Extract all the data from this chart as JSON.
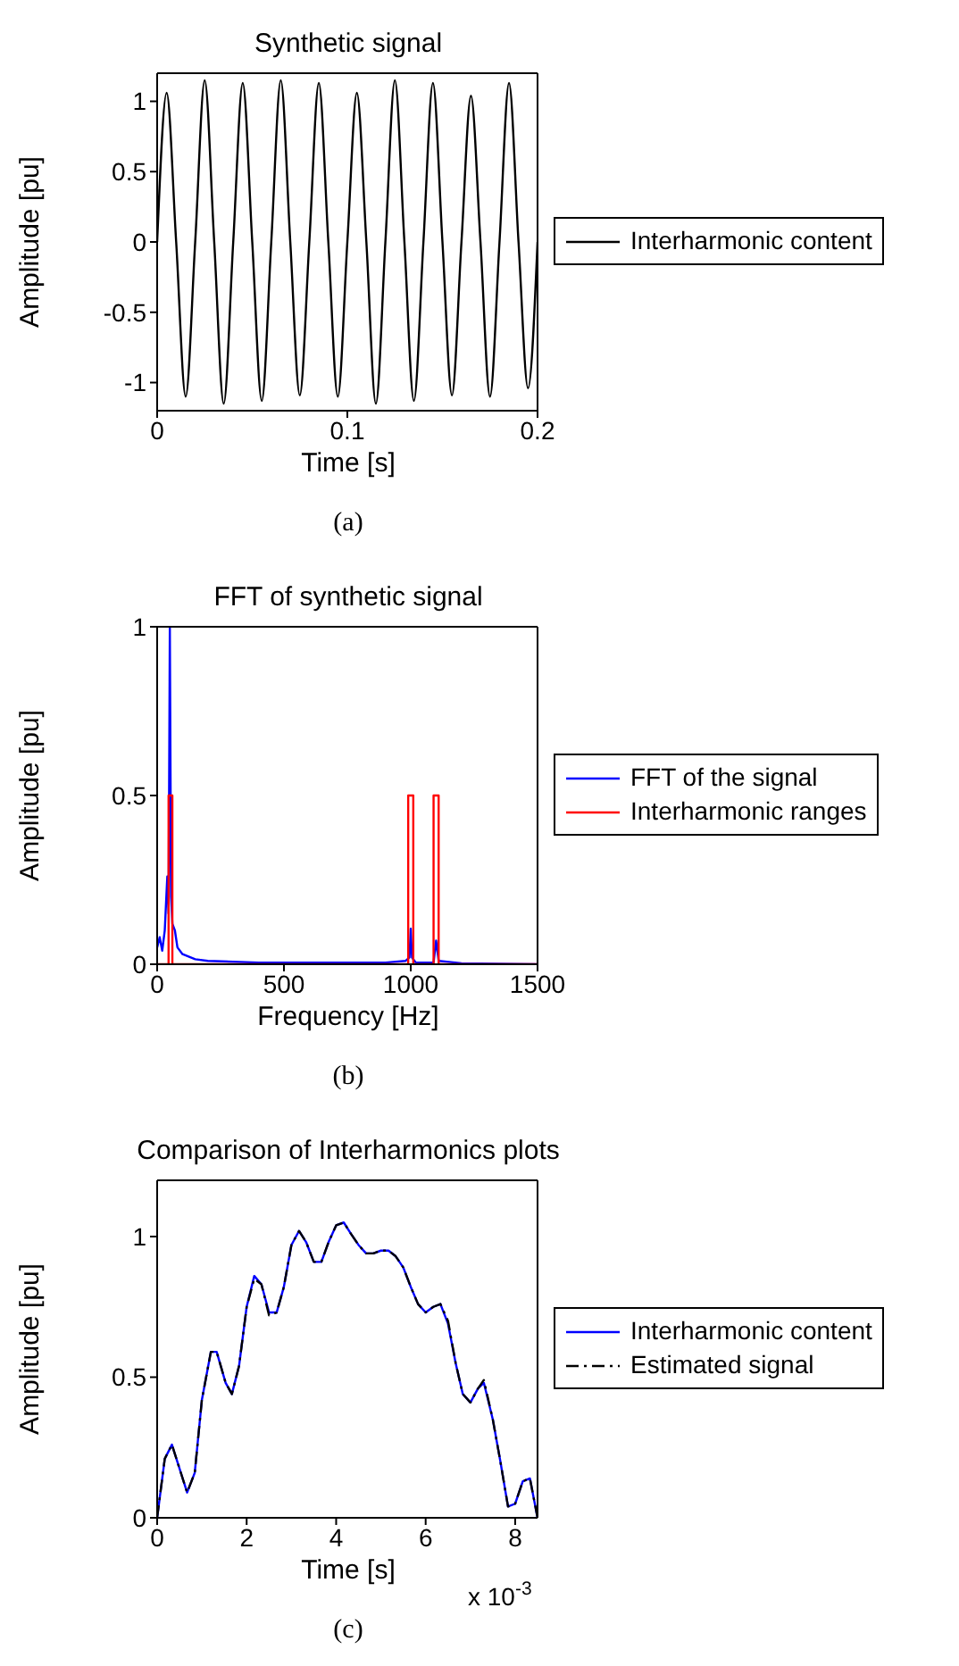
{
  "chart_data": [
    {
      "type": "line",
      "title": "Synthetic signal",
      "xlabel": "Time [s]",
      "ylabel": "Amplitude [pu]",
      "xlim": [
        0,
        0.2
      ],
      "xticks": [
        0,
        0.1,
        0.2
      ],
      "ylim": [
        -1.2,
        1.2
      ],
      "yticks": [
        -1,
        -0.5,
        0,
        0.5,
        1
      ],
      "legend": "right",
      "annotations": [
        "(a)"
      ],
      "series": [
        {
          "name": "Interharmonic content",
          "color": "#000000",
          "x": [
            0,
            0.005,
            0.01,
            0.015,
            0.02,
            0.025,
            0.03,
            0.035,
            0.04,
            0.045,
            0.05,
            0.055,
            0.06,
            0.065,
            0.07,
            0.075,
            0.08,
            0.085,
            0.09,
            0.095,
            0.1,
            0.105,
            0.11,
            0.115,
            0.12,
            0.125,
            0.13,
            0.135,
            0.14,
            0.145,
            0.15,
            0.155,
            0.16,
            0.165,
            0.17,
            0.175,
            0.18,
            0.185,
            0.19,
            0.195,
            0.2
          ],
          "values": [
            0,
            1.06,
            0,
            -1.1,
            0,
            1.15,
            0,
            -1.15,
            0,
            1.13,
            0,
            -1.13,
            0,
            1.15,
            0,
            -1.09,
            0,
            1.13,
            0,
            -1.1,
            0,
            1.06,
            0,
            -1.15,
            0,
            1.15,
            0,
            -1.13,
            0,
            1.13,
            0,
            -1.09,
            0,
            1.04,
            0,
            -1.1,
            0,
            1.13,
            0,
            -1.04,
            0
          ]
        }
      ]
    },
    {
      "type": "line",
      "title": "FFT of synthetic signal",
      "xlabel": "Frequency [Hz]",
      "ylabel": "Amplitude [pu]",
      "xlim": [
        0,
        1500
      ],
      "xticks": [
        0,
        500,
        1000,
        1500
      ],
      "ylim": [
        0,
        1
      ],
      "yticks": [
        0,
        0.5,
        1
      ],
      "legend": "right",
      "annotations": [
        "(b)"
      ],
      "series": [
        {
          "name": "FFT of the signal",
          "color": "#0000ff",
          "x": [
            0,
            10,
            20,
            30,
            40,
            45,
            50,
            55,
            60,
            70,
            80,
            100,
            150,
            200,
            400,
            900,
            980,
            995,
            1000,
            1005,
            1020,
            1090,
            1100,
            1110,
            1200,
            1500
          ],
          "values": [
            0.05,
            0.08,
            0.04,
            0.1,
            0.26,
            0.15,
            1,
            0.2,
            0.12,
            0.1,
            0.05,
            0.03,
            0.015,
            0.01,
            0.005,
            0.005,
            0.01,
            0.02,
            0.105,
            0.02,
            0.005,
            0.005,
            0.07,
            0.01,
            0.003,
            0
          ]
        },
        {
          "name": "Interharmonic ranges",
          "color": "#ff0000",
          "x": [
            0,
            45,
            45,
            60,
            60,
            990,
            990,
            1010,
            1010,
            1090,
            1090,
            1110,
            1110,
            1500
          ],
          "values": [
            0,
            0,
            0.5,
            0.5,
            0,
            0,
            0.5,
            0.5,
            0,
            0,
            0.5,
            0.5,
            0,
            0
          ]
        }
      ]
    },
    {
      "type": "line",
      "title": "Comparison of Interharmonics plots",
      "xlabel": "Time [s]",
      "ylabel": "Amplitude [pu]",
      "xlim": [
        0,
        8.5
      ],
      "xticks": [
        0,
        2,
        4,
        6,
        8
      ],
      "ylim": [
        0,
        1.2
      ],
      "yticks": [
        0,
        0.5,
        1
      ],
      "legend": "right",
      "annotations": [
        "x 10$^{-3}$",
        "(c)"
      ],
      "series": [
        {
          "name": "Interharmonic content",
          "color": "#0000ff",
          "line_style": "solid",
          "x": [
            0,
            0.17,
            0.33,
            0.67,
            0.84,
            1,
            1.2,
            1.33,
            1.53,
            1.67,
            1.83,
            2,
            2.17,
            2.33,
            2.5,
            2.67,
            2.83,
            3,
            3.17,
            3.33,
            3.5,
            3.67,
            3.83,
            4,
            4.17,
            4.33,
            4.5,
            4.67,
            4.83,
            5,
            5.17,
            5.33,
            5.5,
            5.67,
            5.83,
            6,
            6.17,
            6.33,
            6.5,
            6.67,
            6.83,
            7,
            7.17,
            7.3,
            7.5,
            7.67,
            7.84,
            8,
            8.17,
            8.33,
            8.5
          ],
          "values": [
            0,
            0.21,
            0.26,
            0.09,
            0.16,
            0.42,
            0.59,
            0.59,
            0.48,
            0.44,
            0.54,
            0.75,
            0.86,
            0.83,
            0.73,
            0.73,
            0.82,
            0.97,
            1.02,
            0.98,
            0.91,
            0.91,
            0.98,
            1.04,
            1.05,
            1.01,
            0.97,
            0.94,
            0.94,
            0.95,
            0.95,
            0.93,
            0.89,
            0.82,
            0.76,
            0.73,
            0.75,
            0.76,
            0.69,
            0.55,
            0.44,
            0.41,
            0.46,
            0.48,
            0.35,
            0.2,
            0.04,
            0.05,
            0.13,
            0.14,
            0
          ]
        },
        {
          "name": "Estimated signal",
          "color": "#000000",
          "line_style": "dashed",
          "x": [
            0,
            0.17,
            0.33,
            0.67,
            0.84,
            1,
            1.2,
            1.33,
            1.53,
            1.67,
            1.83,
            2,
            2.17,
            2.33,
            2.5,
            2.67,
            2.83,
            3,
            3.17,
            3.33,
            3.5,
            3.67,
            3.83,
            4,
            4.17,
            4.33,
            4.5,
            4.67,
            4.83,
            5,
            5.17,
            5.33,
            5.5,
            5.67,
            5.83,
            6,
            6.17,
            6.33,
            6.5,
            6.67,
            6.83,
            7,
            7.17,
            7.3,
            7.5,
            7.67,
            7.84,
            8,
            8.17,
            8.33,
            8.5
          ],
          "values": [
            0,
            0.21,
            0.26,
            0.09,
            0.16,
            0.42,
            0.59,
            0.59,
            0.48,
            0.44,
            0.54,
            0.75,
            0.85,
            0.83,
            0.72,
            0.73,
            0.82,
            0.97,
            1.02,
            0.98,
            0.91,
            0.91,
            0.98,
            1.04,
            1.05,
            1.01,
            0.97,
            0.94,
            0.94,
            0.95,
            0.95,
            0.93,
            0.89,
            0.82,
            0.76,
            0.73,
            0.75,
            0.76,
            0.7,
            0.55,
            0.44,
            0.41,
            0.46,
            0.49,
            0.35,
            0.2,
            0.04,
            0.05,
            0.13,
            0.14,
            0
          ]
        }
      ]
    }
  ]
}
